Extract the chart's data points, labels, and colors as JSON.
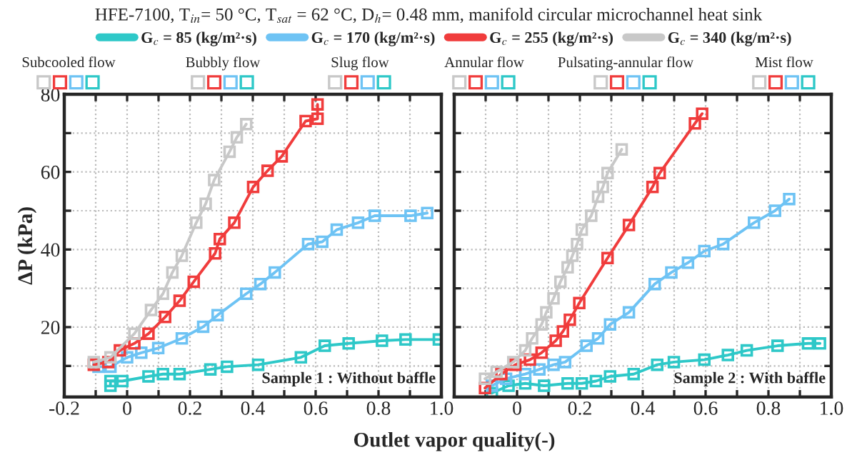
{
  "chart_data": [
    {
      "type": "line",
      "title": "HFE-7100, T$_{in}$= 50 °C, T$_{sat}$ = 62 °C, D$_{h}$= 0.48 mm, manifold circular microchannel heat sink",
      "xlabel": "Outlet vapor quality(-)",
      "ylabel": "ΔP (kPa)",
      "annotations": [
        "Sample 1 : Without baffle",
        "Subcooled flow",
        "Bubbly flow",
        "Slug flow",
        "Annular flow",
        "Pulsating-annular flow",
        "Mist flow"
      ],
      "xlim": [
        -0.2,
        1.0
      ],
      "ylim": [
        2,
        80
      ],
      "xticks": [
        {
          "value": -0.2,
          "label": "-0.2"
        },
        {
          "value": -0.1,
          "label": null
        },
        {
          "value": 0,
          "label": "0"
        },
        {
          "value": 0.1,
          "label": null
        },
        {
          "value": 0.2,
          "label": "0.2"
        },
        {
          "value": 0.3,
          "label": null
        },
        {
          "value": 0.4,
          "label": "0.4"
        },
        {
          "value": 0.5,
          "label": null
        },
        {
          "value": 0.6,
          "label": "0.6"
        },
        {
          "value": 0.7,
          "label": null
        },
        {
          "value": 0.8,
          "label": "0.8"
        },
        {
          "value": 0.9,
          "label": null
        },
        {
          "value": 1.0,
          "label": "1.0"
        }
      ],
      "yticks": [
        {
          "value": 10,
          "label": null
        },
        20,
        {
          "value": 30,
          "label": null
        },
        40,
        {
          "value": 50,
          "label": null
        },
        60,
        {
          "value": 70,
          "label": null
        },
        80
      ],
      "grid": true,
      "legend": "top",
      "marker": "square",
      "line_style": "solid",
      "series": [
        {
          "name": "G$_{c}$ = 85 (kg/m²·s)",
          "color": "#2ec8c8",
          "x": [
            -0.053,
            -0.053,
            -0.015,
            0.068,
            0.114,
            0.167,
            0.265,
            0.318,
            0.417,
            0.553,
            0.629,
            0.705,
            0.811,
            0.886,
            0.992
          ],
          "values": [
            4.9,
            6.1,
            6.1,
            7.3,
            7.9,
            7.9,
            9.1,
            9.8,
            10.3,
            12.2,
            15.2,
            15.8,
            16.5,
            16.8,
            16.8
          ]
        },
        {
          "name": "G$_{c}$ = 170 (kg/m²·s)",
          "color": "#6ec3f4",
          "x": [
            -0.091,
            -0.053,
            0,
            0.045,
            0.099,
            0.174,
            0.242,
            0.288,
            0.379,
            0.424,
            0.47,
            0.576,
            0.621,
            0.667,
            0.735,
            0.788,
            0.902,
            0.955
          ],
          "values": [
            9.8,
            9.8,
            12.2,
            13.4,
            14.6,
            17.1,
            20.1,
            23.1,
            28.6,
            31.1,
            34.1,
            41.4,
            42,
            45.1,
            46.9,
            48.7,
            48.7,
            49.4
          ]
        },
        {
          "name": "G$_{c}$ = 255 (kg/m²·s)",
          "color": "#f03c3c",
          "x": [
            -0.106,
            -0.06,
            -0.023,
            0.023,
            0.068,
            0.121,
            0.167,
            0.212,
            0.28,
            0.295,
            0.341,
            0.401,
            0.447,
            0.492,
            0.568,
            0.606,
            0.606
          ],
          "values": [
            10.3,
            11,
            14,
            15.8,
            18.3,
            22.6,
            26.8,
            31.7,
            39,
            42.7,
            46.9,
            56.1,
            60.3,
            64,
            73.1,
            73.7,
            77.4
          ]
        },
        {
          "name": "G$_{c}$ = 340 (kg/m²·s)",
          "color": "#c8c8c8",
          "x": [
            -0.106,
            -0.053,
            0.023,
            0.076,
            0.114,
            0.144,
            0.174,
            0.22,
            0.25,
            0.277,
            0.326,
            0.349,
            0.379
          ],
          "values": [
            11,
            12.2,
            18.3,
            24.4,
            28.6,
            34.1,
            38.4,
            46.9,
            51.8,
            57.9,
            65.2,
            68.9,
            72.3
          ]
        }
      ]
    },
    {
      "type": "line",
      "annotations": [
        "Sample 2 : With baffle"
      ],
      "xlim": [
        -0.2,
        1.0
      ],
      "ylim": [
        2,
        80
      ],
      "xticks": [
        {
          "value": -0.1,
          "label": null
        },
        {
          "value": 0,
          "label": "0"
        },
        {
          "value": 0.1,
          "label": null
        },
        {
          "value": 0.2,
          "label": "0.2"
        },
        {
          "value": 0.3,
          "label": null
        },
        {
          "value": 0.4,
          "label": "0.4"
        },
        {
          "value": 0.5,
          "label": null
        },
        {
          "value": 0.6,
          "label": "0.6"
        },
        {
          "value": 0.7,
          "label": null
        },
        {
          "value": 0.8,
          "label": "0.8"
        },
        {
          "value": 0.9,
          "label": null
        },
        {
          "value": 1.0,
          "label": "1.0"
        }
      ],
      "yticks": [
        {
          "value": 10,
          "label": null
        },
        {
          "value": 20,
          "label": null
        },
        {
          "value": 30,
          "label": null
        },
        {
          "value": 40,
          "label": null
        },
        {
          "value": 50,
          "label": null
        },
        {
          "value": 60,
          "label": null
        },
        {
          "value": 70,
          "label": null
        },
        {
          "value": 80,
          "label": null
        }
      ],
      "tick_labels": "x",
      "grid": true,
      "marker": "square",
      "line_style": "solid",
      "series": [
        {
          "color": "#2ec8c8",
          "x": [
            -0.08,
            -0.027,
            0.026,
            0.086,
            0.161,
            0.206,
            0.251,
            0.296,
            0.371,
            0.446,
            0.499,
            0.596,
            0.671,
            0.731,
            0.829,
            0.926,
            0.964
          ],
          "values": [
            3,
            4.9,
            5.5,
            4.9,
            5.5,
            5.5,
            6.1,
            7.3,
            7.9,
            10.3,
            11,
            11.6,
            12.8,
            14,
            15.2,
            15.8,
            15.8
          ]
        },
        {
          "color": "#6ec3f4",
          "x": [
            -0.08,
            -0.035,
            0.026,
            0.071,
            0.116,
            0.153,
            0.221,
            0.258,
            0.296,
            0.356,
            0.438,
            0.491,
            0.544,
            0.596,
            0.656,
            0.754,
            0.821,
            0.866
          ],
          "values": [
            4.9,
            6.7,
            7.9,
            9.1,
            10.3,
            11,
            15.2,
            17.1,
            20.7,
            23.8,
            31.1,
            34.1,
            36.6,
            39.6,
            41.4,
            46.9,
            50,
            53
          ]
        },
        {
          "color": "#f03c3c",
          "x": [
            -0.102,
            -0.05,
            -0.005,
            0.041,
            0.078,
            0.123,
            0.146,
            0.168,
            0.198,
            0.288,
            0.356,
            0.431,
            0.454,
            0.566,
            0.589
          ],
          "values": [
            4.3,
            7.9,
            10.3,
            11.6,
            13.4,
            16.5,
            18.9,
            21.9,
            26.2,
            37.8,
            46.3,
            56.1,
            59.7,
            72.5,
            75
          ]
        },
        {
          "color": "#c8c8c8",
          "x": [
            -0.102,
            -0.065,
            -0.012,
            0.026,
            0.048,
            0.078,
            0.093,
            0.116,
            0.138,
            0.161,
            0.176,
            0.191,
            0.206,
            0.236,
            0.258,
            0.273,
            0.288,
            0.333
          ],
          "values": [
            6.7,
            8.5,
            11,
            14,
            17.1,
            20.7,
            23.8,
            27.4,
            31.7,
            35.4,
            38.4,
            41.4,
            45.1,
            48.7,
            53.6,
            56.1,
            59.7,
            65.8
          ]
        }
      ]
    }
  ]
}
